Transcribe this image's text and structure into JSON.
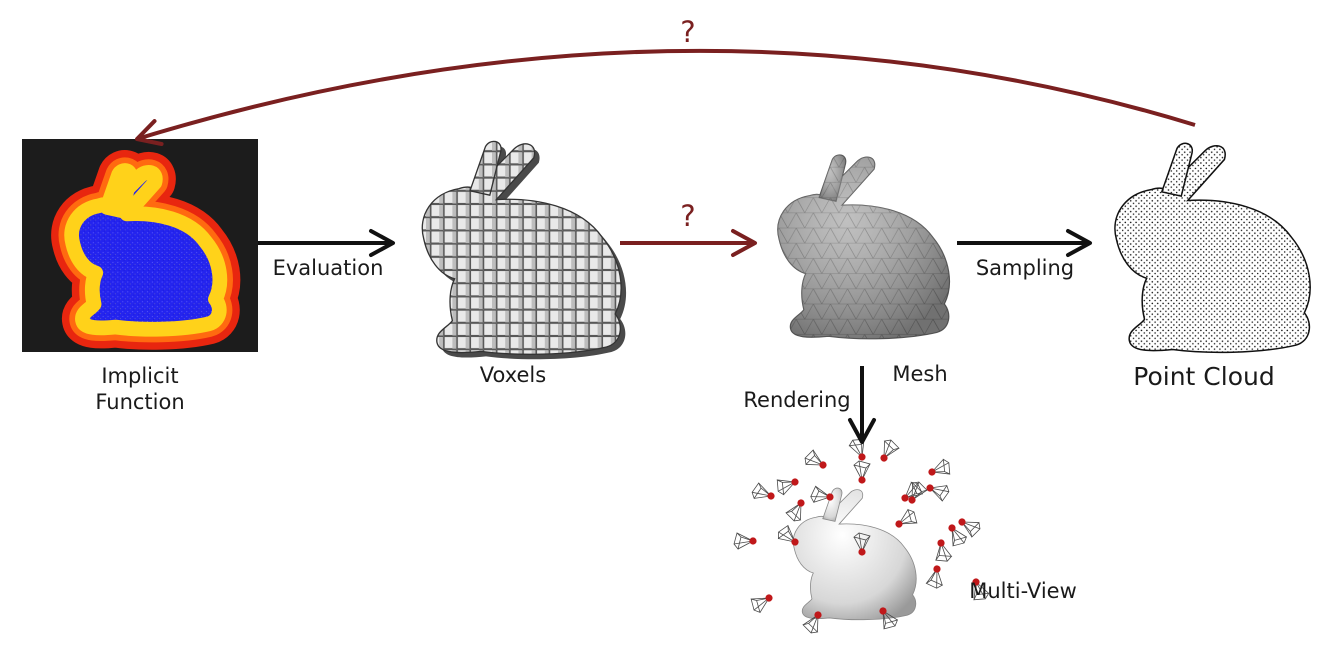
{
  "nodes": {
    "implicit_function": {
      "label_lines": [
        "Implicit",
        "Function"
      ]
    },
    "voxels": {
      "label": "Voxels"
    },
    "mesh": {
      "label": "Mesh"
    },
    "point_cloud": {
      "label": "Point Cloud"
    },
    "multi_view": {
      "label": "Multi-View"
    }
  },
  "edges": {
    "evaluation": {
      "from": "implicit_function",
      "to": "voxels",
      "label": "Evaluation"
    },
    "voxels_to_mesh": {
      "from": "voxels",
      "to": "mesh",
      "label": "?"
    },
    "sampling": {
      "from": "mesh",
      "to": "point_cloud",
      "label": "Sampling"
    },
    "rendering": {
      "from": "mesh",
      "to": "multi_view",
      "label": "Rendering"
    },
    "point_cloud_to_implicit": {
      "from": "point_cloud",
      "to": "implicit_function",
      "label": "?"
    }
  },
  "colors": {
    "arrow": "#111111",
    "unknown_arrow": "#7a2020",
    "label_text": "#1a1a1a",
    "camera_dot": "#c0181a"
  }
}
